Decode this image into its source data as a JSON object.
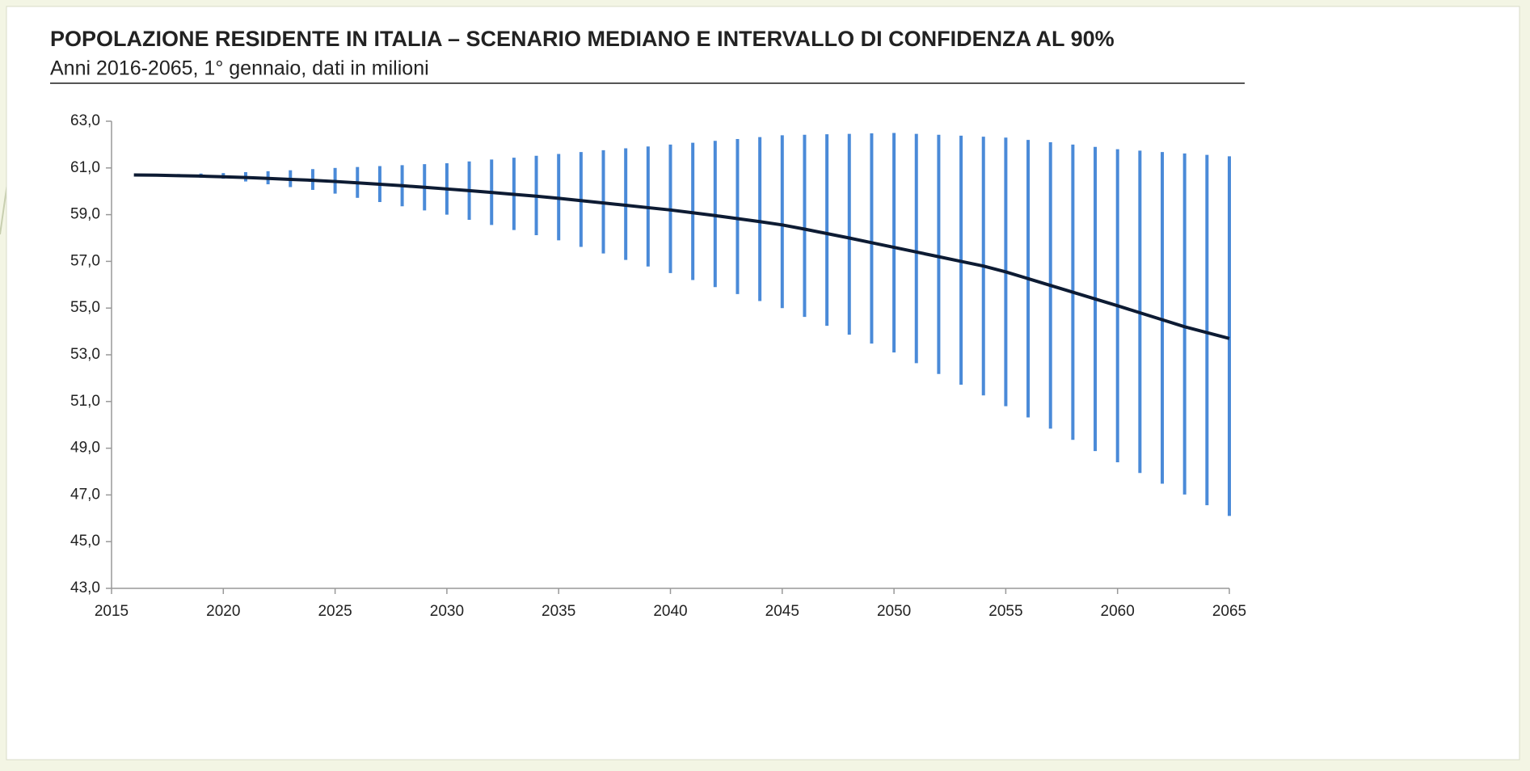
{
  "chart_data": {
    "type": "line",
    "title": "POPOLAZIONE RESIDENTE IN ITALIA – SCENARIO MEDIANO E INTERVALLO DI CONFIDENZA AL 90%",
    "subtitle": "Anni 2016-2065, 1° gennaio, dati in milioni",
    "x": [
      2016,
      2017,
      2018,
      2019,
      2020,
      2021,
      2022,
      2023,
      2024,
      2025,
      2026,
      2027,
      2028,
      2029,
      2030,
      2031,
      2032,
      2033,
      2034,
      2035,
      2036,
      2037,
      2038,
      2039,
      2040,
      2041,
      2042,
      2043,
      2044,
      2045,
      2046,
      2047,
      2048,
      2049,
      2050,
      2051,
      2052,
      2053,
      2054,
      2055,
      2056,
      2057,
      2058,
      2059,
      2060,
      2061,
      2062,
      2063,
      2064,
      2065
    ],
    "series": [
      {
        "color": "#0d1b33",
        "values": [
          60.7,
          60.69,
          60.67,
          60.65,
          60.62,
          60.59,
          60.55,
          60.51,
          60.47,
          60.42,
          60.36,
          60.3,
          60.24,
          60.17,
          60.1,
          60.03,
          59.95,
          59.87,
          59.79,
          59.7,
          59.6,
          59.5,
          59.4,
          59.3,
          59.2,
          59.08,
          58.96,
          58.83,
          58.7,
          58.56,
          58.38,
          58.19,
          58.0,
          57.8,
          57.6,
          57.4,
          57.2,
          57.0,
          56.8,
          56.55,
          56.26,
          55.97,
          55.68,
          55.39,
          55.1,
          54.8,
          54.5,
          54.2,
          53.95,
          53.7
        ]
      }
    ],
    "interval": {
      "color": "#4a8ad8",
      "low": [
        60.7,
        60.66,
        60.62,
        60.58,
        60.54,
        60.42,
        60.3,
        60.18,
        60.06,
        59.9,
        59.72,
        59.54,
        59.36,
        59.18,
        59.0,
        58.78,
        58.56,
        58.34,
        58.12,
        57.9,
        57.62,
        57.34,
        57.06,
        56.78,
        56.5,
        56.2,
        55.9,
        55.6,
        55.3,
        55.0,
        54.62,
        54.24,
        53.86,
        53.48,
        53.1,
        52.64,
        52.18,
        51.72,
        51.26,
        50.8,
        50.32,
        49.84,
        49.36,
        48.88,
        48.4,
        47.94,
        47.48,
        47.02,
        46.56,
        46.1
      ],
      "high": [
        60.7,
        60.72,
        60.74,
        60.76,
        60.78,
        60.82,
        60.86,
        60.9,
        60.95,
        61.0,
        61.04,
        61.08,
        61.12,
        61.16,
        61.2,
        61.28,
        61.36,
        61.44,
        61.52,
        61.6,
        61.68,
        61.76,
        61.84,
        61.92,
        62.0,
        62.08,
        62.16,
        62.24,
        62.32,
        62.4,
        62.42,
        62.44,
        62.46,
        62.48,
        62.5,
        62.46,
        62.42,
        62.38,
        62.34,
        62.3,
        62.2,
        62.1,
        62.0,
        61.9,
        61.8,
        61.74,
        61.68,
        61.62,
        61.56,
        61.5
      ]
    },
    "xlim": [
      2015,
      2065
    ],
    "xticks": [
      2015,
      2020,
      2025,
      2030,
      2035,
      2040,
      2045,
      2050,
      2055,
      2060,
      2065
    ],
    "ylim": [
      43,
      63
    ],
    "yticks": [
      {
        "value": 43,
        "label": "43,0"
      },
      {
        "value": 45,
        "label": "45,0"
      },
      {
        "value": 47,
        "label": "47,0"
      },
      {
        "value": 49,
        "label": "49,0"
      },
      {
        "value": 51,
        "label": "51,0"
      },
      {
        "value": 53,
        "label": "53,0"
      },
      {
        "value": 55,
        "label": "55,0"
      },
      {
        "value": 57,
        "label": "57,0"
      },
      {
        "value": 59,
        "label": "59,0"
      },
      {
        "value": 61,
        "label": "61,0"
      },
      {
        "value": 63,
        "label": "63,0"
      }
    ],
    "grid": false
  }
}
